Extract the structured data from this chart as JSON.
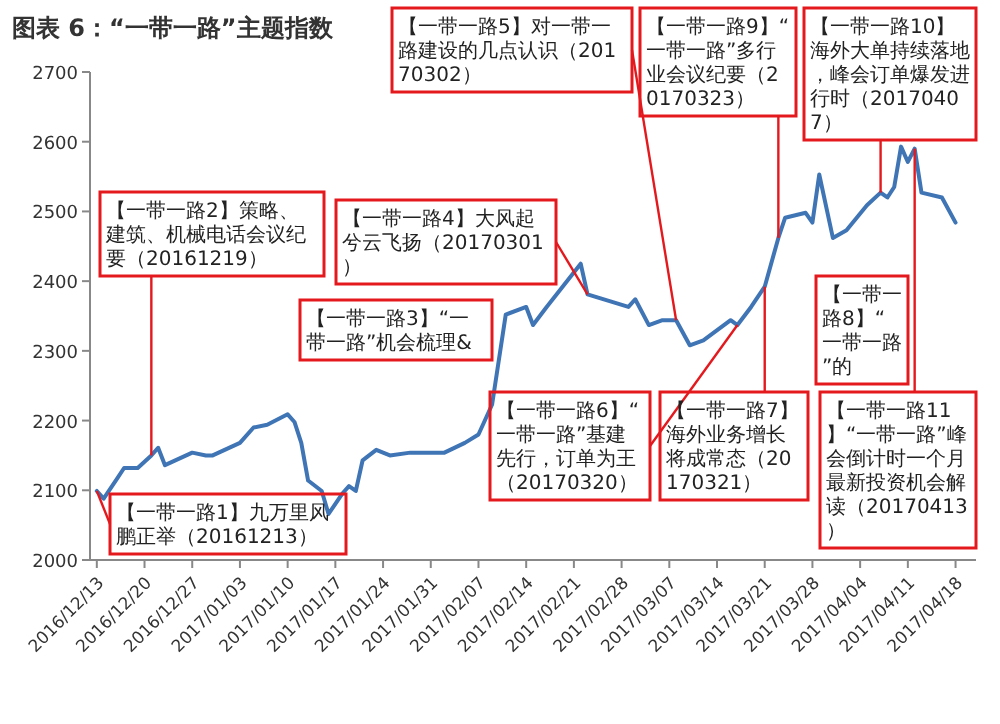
{
  "chart_data": {
    "type": "line",
    "title": "图表 6：“一带一路”主题指数",
    "x": [
      "2016-12-13",
      "2016-12-14",
      "2016-12-16",
      "2016-12-17",
      "2016-12-19",
      "2016-12-21",
      "2016-12-22",
      "2016-12-23",
      "2016-12-27",
      "2016-12-29",
      "2016-12-30",
      "2017-01-03",
      "2017-01-05",
      "2017-01-07",
      "2017-01-10",
      "2017-01-11",
      "2017-01-12",
      "2017-01-13",
      "2017-01-15",
      "2017-01-16",
      "2017-01-18",
      "2017-01-19",
      "2017-01-20",
      "2017-01-21",
      "2017-01-23",
      "2017-01-25",
      "2017-01-28",
      "2017-02-02",
      "2017-02-05",
      "2017-02-07",
      "2017-02-09",
      "2017-02-11",
      "2017-02-14",
      "2017-02-15",
      "2017-02-17",
      "2017-02-22",
      "2017-02-23",
      "2017-03-01",
      "2017-03-02",
      "2017-03-04",
      "2017-03-06",
      "2017-03-08",
      "2017-03-10",
      "2017-03-12",
      "2017-03-16",
      "2017-03-17",
      "2017-03-19",
      "2017-03-21",
      "2017-03-23",
      "2017-03-24",
      "2017-03-27",
      "2017-03-28",
      "2017-03-29",
      "2017-03-31",
      "2017-04-02",
      "2017-04-05",
      "2017-04-07",
      "2017-04-08",
      "2017-04-09",
      "2017-04-10",
      "2017-04-11",
      "2017-04-12",
      "2017-04-13",
      "2017-04-16",
      "2017-04-18"
    ],
    "series": [
      {
        "color": "#3f74b5",
        "values": [
          2099,
          2088,
          2117,
          2132,
          2132,
          2150,
          2161,
          2136,
          2154,
          2150,
          2150,
          2168,
          2190,
          2194,
          2209,
          2198,
          2168,
          2114,
          2099,
          2066,
          2095,
          2106,
          2099,
          2143,
          2158,
          2150,
          2154,
          2154,
          2168,
          2180,
          2223,
          2352,
          2363,
          2337,
          2363,
          2425,
          2381,
          2363,
          2374,
          2337,
          2344,
          2344,
          2308,
          2315,
          2344,
          2337,
          2363,
          2392,
          2462,
          2491,
          2498,
          2484,
          2553,
          2462,
          2473,
          2509,
          2527,
          2520,
          2535,
          2593,
          2571,
          2590,
          2527,
          2520,
          2484
        ]
      }
    ],
    "xlim": [
      "2016-12-12",
      "2017-04-21"
    ],
    "xticks": [
      {
        "value": "2016-12-13",
        "label": "2016/12/13"
      },
      {
        "value": "2016-12-20",
        "label": "2016/12/20"
      },
      {
        "value": "2016-12-27",
        "label": "2016/12/27"
      },
      {
        "value": "2017-01-03",
        "label": "2017/01/03"
      },
      {
        "value": "2017-01-10",
        "label": "2017/01/10"
      },
      {
        "value": "2017-01-17",
        "label": "2017/01/17"
      },
      {
        "value": "2017-01-24",
        "label": "2017/01/24"
      },
      {
        "value": "2017-01-31",
        "label": "2017/01/31"
      },
      {
        "value": "2017-02-07",
        "label": "2017/02/07"
      },
      {
        "value": "2017-02-14",
        "label": "2017/02/14"
      },
      {
        "value": "2017-02-21",
        "label": "2017/02/21"
      },
      {
        "value": "2017-02-28",
        "label": "2017/02/28"
      },
      {
        "value": "2017-03-07",
        "label": "2017/03/07"
      },
      {
        "value": "2017-03-14",
        "label": "2017/03/14"
      },
      {
        "value": "2017-03-21",
        "label": "2017/03/21"
      },
      {
        "value": "2017-03-28",
        "label": "2017/03/28"
      },
      {
        "value": "2017-04-04",
        "label": "2017/04/04"
      },
      {
        "value": "2017-04-11",
        "label": "2017/04/11"
      },
      {
        "value": "2017-04-18",
        "label": "2017/04/18"
      }
    ],
    "ylim": [
      2000,
      2700
    ],
    "yticks": [
      2000,
      2100,
      2200,
      2300,
      2400,
      2500,
      2600,
      2700
    ],
    "annotations": [
      {
        "text": "【一带一路1】九万里风鹏正举（20161213）",
        "x": "2016-12-13",
        "y": 2099
      },
      {
        "text": "【一带一路2】策略、建筑、机械电话会议纪要（20161219）",
        "x": "2016-12-21",
        "y": 2150
      },
      "【一带一路3】“一带一路”机会梳理&",
      {
        "text": "【一带一路4】大风起兮云飞扬（20170301）",
        "x": "2017-02-23",
        "y": 2381
      },
      {
        "text": "【一带一路5】对一带一路建设的几点认识（20170302）",
        "x": "2017-03-08",
        "y": 2344
      },
      {
        "text": "【一带一路6】“一带一路”基建先行，订单为王（20170320）",
        "x": "2017-03-17",
        "y": 2337
      },
      {
        "text": "【一带一路7】海外业务增长将成常态（20170321）",
        "x": "2017-03-21",
        "y": 2392
      },
      "【一带一路8】“一带一路”的",
      {
        "text": "【一带一路9】“一带一路”多行业会议纪要（20170323）",
        "x": "2017-03-23",
        "y": 2462
      },
      {
        "text": "【一带一路10】海外大单持续落地，峰会订单爆发进行时（20170407）",
        "x": "2017-04-07",
        "y": 2527
      },
      {
        "text": "【一带一路11】“一带一路”峰会倒计时一个月最新投资机会解读（20170413）",
        "x": "2017-04-12",
        "y": 2590
      }
    ]
  }
}
